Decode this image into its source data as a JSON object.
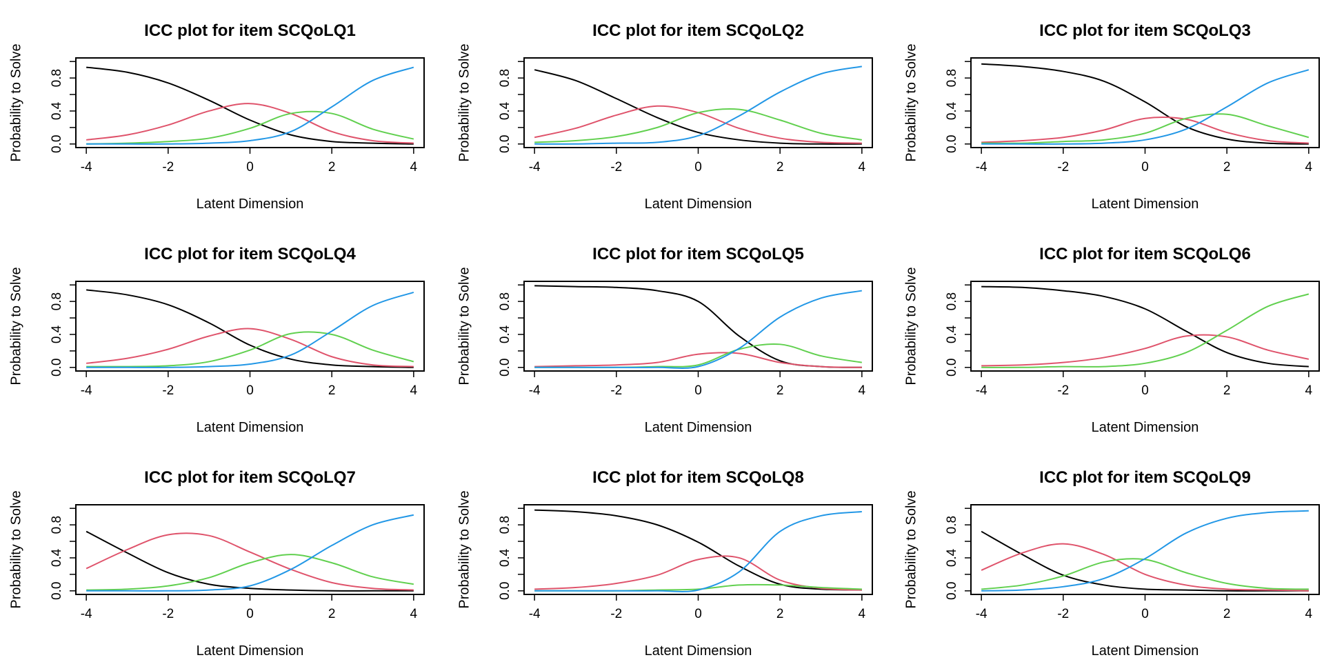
{
  "chart_data": [
    {
      "type": "line",
      "title": "ICC plot for item SCQoLQ1",
      "xlabel": "Latent Dimension",
      "ylabel": "Probability to Solve",
      "xlim": [
        -4,
        4
      ],
      "ylim": [
        0,
        1
      ],
      "x_ticks": [
        "-4",
        "-2",
        "0",
        "2",
        "4"
      ],
      "y_ticks": [
        "0.0",
        "0.4",
        "0.8"
      ],
      "x": [
        -4,
        -3,
        -2,
        -1,
        0,
        1,
        2,
        3,
        4
      ],
      "series": [
        {
          "color": "#000000",
          "values": [
            0.93,
            0.87,
            0.74,
            0.53,
            0.29,
            0.11,
            0.03,
            0.01,
            0.0
          ]
        },
        {
          "color": "#DF536B",
          "values": [
            0.05,
            0.11,
            0.23,
            0.4,
            0.49,
            0.37,
            0.15,
            0.04,
            0.01
          ]
        },
        {
          "color": "#61D04F",
          "values": [
            0.0,
            0.01,
            0.03,
            0.07,
            0.19,
            0.37,
            0.37,
            0.18,
            0.06
          ]
        },
        {
          "color": "#2297E6",
          "values": [
            0.0,
            0.0,
            0.0,
            0.01,
            0.04,
            0.15,
            0.45,
            0.77,
            0.93
          ]
        }
      ],
      "grid": false,
      "legend": "none"
    },
    {
      "type": "line",
      "title": "ICC plot for item SCQoLQ2",
      "xlabel": "Latent Dimension",
      "ylabel": "Probability to Solve",
      "xlim": [
        -4,
        4
      ],
      "ylim": [
        0,
        1
      ],
      "x_ticks": [
        "-4",
        "-2",
        "0",
        "2",
        "4"
      ],
      "y_ticks": [
        "0.0",
        "0.4",
        "0.8"
      ],
      "x": [
        -4,
        -3,
        -2,
        -1,
        0,
        1,
        2,
        3,
        4
      ],
      "series": [
        {
          "color": "#000000",
          "values": [
            0.9,
            0.77,
            0.55,
            0.32,
            0.14,
            0.05,
            0.01,
            0.0,
            0.0
          ]
        },
        {
          "color": "#DF536B",
          "values": [
            0.08,
            0.19,
            0.35,
            0.46,
            0.38,
            0.19,
            0.07,
            0.02,
            0.01
          ]
        },
        {
          "color": "#61D04F",
          "values": [
            0.02,
            0.04,
            0.09,
            0.2,
            0.38,
            0.42,
            0.29,
            0.13,
            0.05
          ]
        },
        {
          "color": "#2297E6",
          "values": [
            0.0,
            0.0,
            0.01,
            0.02,
            0.1,
            0.34,
            0.63,
            0.85,
            0.94
          ]
        }
      ],
      "grid": false,
      "legend": "none"
    },
    {
      "type": "line",
      "title": "ICC plot for item SCQoLQ3",
      "xlabel": "Latent Dimension",
      "ylabel": "Probability to Solve",
      "xlim": [
        -4,
        4
      ],
      "ylim": [
        0,
        1
      ],
      "x_ticks": [
        "-4",
        "-2",
        "0",
        "2",
        "4"
      ],
      "y_ticks": [
        "0.0",
        "0.4",
        "0.8"
      ],
      "x": [
        -4,
        -3,
        -2,
        -1,
        0,
        1,
        2,
        3,
        4
      ],
      "series": [
        {
          "color": "#000000",
          "values": [
            0.97,
            0.94,
            0.88,
            0.76,
            0.51,
            0.21,
            0.06,
            0.01,
            0.0
          ]
        },
        {
          "color": "#DF536B",
          "values": [
            0.02,
            0.04,
            0.08,
            0.17,
            0.31,
            0.3,
            0.14,
            0.04,
            0.01
          ]
        },
        {
          "color": "#61D04F",
          "values": [
            0.01,
            0.01,
            0.03,
            0.05,
            0.13,
            0.31,
            0.36,
            0.22,
            0.08
          ]
        },
        {
          "color": "#2297E6",
          "values": [
            0.0,
            0.0,
            0.0,
            0.01,
            0.05,
            0.18,
            0.45,
            0.74,
            0.9
          ]
        }
      ],
      "grid": false,
      "legend": "none"
    },
    {
      "type": "line",
      "title": "ICC plot for item SCQoLQ4",
      "xlabel": "Latent Dimension",
      "ylabel": "Probability to Solve",
      "xlim": [
        -4,
        4
      ],
      "ylim": [
        0,
        1
      ],
      "x_ticks": [
        "-4",
        "-2",
        "0",
        "2",
        "4"
      ],
      "y_ticks": [
        "0.0",
        "0.4",
        "0.8"
      ],
      "x": [
        -4,
        -3,
        -2,
        -1,
        0,
        1,
        2,
        3,
        4
      ],
      "series": [
        {
          "color": "#000000",
          "values": [
            0.94,
            0.88,
            0.76,
            0.54,
            0.27,
            0.1,
            0.03,
            0.01,
            0.0
          ]
        },
        {
          "color": "#DF536B",
          "values": [
            0.05,
            0.11,
            0.22,
            0.38,
            0.47,
            0.34,
            0.13,
            0.03,
            0.01
          ]
        },
        {
          "color": "#61D04F",
          "values": [
            0.01,
            0.01,
            0.02,
            0.07,
            0.21,
            0.41,
            0.4,
            0.21,
            0.07
          ]
        },
        {
          "color": "#2297E6",
          "values": [
            0.0,
            0.0,
            0.0,
            0.01,
            0.04,
            0.15,
            0.44,
            0.75,
            0.91
          ]
        }
      ],
      "grid": false,
      "legend": "none"
    },
    {
      "type": "line",
      "title": "ICC plot for item SCQoLQ5",
      "xlabel": "Latent Dimension",
      "ylabel": "Probability to Solve",
      "xlim": [
        -4,
        4
      ],
      "ylim": [
        0,
        1
      ],
      "x_ticks": [
        "-4",
        "-2",
        "0",
        "2",
        "4"
      ],
      "y_ticks": [
        "0.0",
        "0.4",
        "0.8"
      ],
      "x": [
        -4,
        -3,
        -2,
        -1,
        0,
        1,
        2,
        3,
        4
      ],
      "series": [
        {
          "color": "#000000",
          "values": [
            0.99,
            0.98,
            0.97,
            0.93,
            0.8,
            0.38,
            0.08,
            0.01,
            0.0
          ]
        },
        {
          "color": "#DF536B",
          "values": [
            0.01,
            0.02,
            0.03,
            0.06,
            0.16,
            0.17,
            0.06,
            0.01,
            0.0
          ]
        },
        {
          "color": "#61D04F",
          "values": [
            0.0,
            0.0,
            0.0,
            0.01,
            0.03,
            0.22,
            0.28,
            0.14,
            0.06
          ]
        },
        {
          "color": "#2297E6",
          "values": [
            0.0,
            0.0,
            0.0,
            0.0,
            0.01,
            0.23,
            0.61,
            0.84,
            0.93
          ]
        }
      ],
      "grid": false,
      "legend": "none"
    },
    {
      "type": "line",
      "title": "ICC plot for item SCQoLQ6",
      "xlabel": "Latent Dimension",
      "ylabel": "Probability to Solve",
      "xlim": [
        -4,
        4
      ],
      "ylim": [
        0,
        1
      ],
      "x_ticks": [
        "-4",
        "-2",
        "0",
        "2",
        "4"
      ],
      "y_ticks": [
        "0.0",
        "0.4",
        "0.8"
      ],
      "x": [
        -4,
        -3,
        -2,
        -1,
        0,
        1,
        2,
        3,
        4
      ],
      "series": [
        {
          "color": "#000000",
          "values": [
            0.98,
            0.97,
            0.93,
            0.86,
            0.71,
            0.44,
            0.18,
            0.05,
            0.01
          ]
        },
        {
          "color": "#DF536B",
          "values": [
            0.02,
            0.03,
            0.06,
            0.12,
            0.23,
            0.38,
            0.37,
            0.21,
            0.1
          ]
        },
        {
          "color": "#61D04F",
          "values": [
            0.0,
            0.0,
            0.01,
            0.01,
            0.05,
            0.18,
            0.45,
            0.74,
            0.89
          ]
        }
      ],
      "grid": false,
      "legend": "none"
    },
    {
      "type": "line",
      "title": "ICC plot for item SCQoLQ7",
      "xlabel": "Latent Dimension",
      "ylabel": "Probability to Solve",
      "xlim": [
        -4,
        4
      ],
      "ylim": [
        0,
        1
      ],
      "x_ticks": [
        "-4",
        "-2",
        "0",
        "2",
        "4"
      ],
      "y_ticks": [
        "0.0",
        "0.4",
        "0.8"
      ],
      "x": [
        -4,
        -3,
        -2,
        -1,
        0,
        1,
        2,
        3,
        4
      ],
      "series": [
        {
          "color": "#000000",
          "values": [
            0.72,
            0.46,
            0.22,
            0.08,
            0.03,
            0.01,
            0.0,
            0.0,
            0.0
          ]
        },
        {
          "color": "#DF536B",
          "values": [
            0.27,
            0.5,
            0.68,
            0.67,
            0.47,
            0.26,
            0.1,
            0.03,
            0.01
          ]
        },
        {
          "color": "#61D04F",
          "values": [
            0.01,
            0.02,
            0.06,
            0.16,
            0.34,
            0.44,
            0.34,
            0.17,
            0.08
          ]
        },
        {
          "color": "#2297E6",
          "values": [
            0.0,
            0.0,
            0.0,
            0.01,
            0.06,
            0.26,
            0.55,
            0.8,
            0.92
          ]
        }
      ],
      "grid": false,
      "legend": "none"
    },
    {
      "type": "line",
      "title": "ICC plot for item SCQoLQ8",
      "xlabel": "Latent Dimension",
      "ylabel": "Probability to Solve",
      "xlim": [
        -4,
        4
      ],
      "ylim": [
        0,
        1
      ],
      "x_ticks": [
        "-4",
        "-2",
        "0",
        "2",
        "4"
      ],
      "y_ticks": [
        "0.0",
        "0.4",
        "0.8"
      ],
      "x": [
        -4,
        -3,
        -2,
        -1,
        0,
        1,
        2,
        3,
        4
      ],
      "series": [
        {
          "color": "#000000",
          "values": [
            0.98,
            0.96,
            0.91,
            0.8,
            0.59,
            0.3,
            0.08,
            0.02,
            0.01
          ]
        },
        {
          "color": "#DF536B",
          "values": [
            0.02,
            0.04,
            0.09,
            0.19,
            0.38,
            0.4,
            0.13,
            0.03,
            0.01
          ]
        },
        {
          "color": "#61D04F",
          "values": [
            0.0,
            0.0,
            0.0,
            0.01,
            0.02,
            0.07,
            0.07,
            0.04,
            0.02
          ]
        },
        {
          "color": "#2297E6",
          "values": [
            0.0,
            0.0,
            0.0,
            0.0,
            0.01,
            0.23,
            0.72,
            0.91,
            0.96
          ]
        }
      ],
      "grid": false,
      "legend": "none"
    },
    {
      "type": "line",
      "title": "ICC plot for item SCQoLQ9",
      "xlabel": "Latent Dimension",
      "ylabel": "Probability to Solve",
      "xlim": [
        -4,
        4
      ],
      "ylim": [
        0,
        1
      ],
      "x_ticks": [
        "-4",
        "-2",
        "0",
        "2",
        "4"
      ],
      "y_ticks": [
        "0.0",
        "0.4",
        "0.8"
      ],
      "x": [
        -4,
        -3,
        -2,
        -1,
        0,
        1,
        2,
        3,
        4
      ],
      "series": [
        {
          "color": "#000000",
          "values": [
            0.72,
            0.44,
            0.19,
            0.07,
            0.02,
            0.01,
            0.0,
            0.0,
            0.0
          ]
        },
        {
          "color": "#DF536B",
          "values": [
            0.25,
            0.46,
            0.57,
            0.44,
            0.2,
            0.07,
            0.02,
            0.01,
            0.0
          ]
        },
        {
          "color": "#61D04F",
          "values": [
            0.02,
            0.07,
            0.18,
            0.35,
            0.38,
            0.22,
            0.09,
            0.03,
            0.02
          ]
        },
        {
          "color": "#2297E6",
          "values": [
            0.0,
            0.01,
            0.05,
            0.15,
            0.39,
            0.7,
            0.88,
            0.95,
            0.97
          ]
        }
      ],
      "grid": false,
      "legend": "none"
    }
  ]
}
